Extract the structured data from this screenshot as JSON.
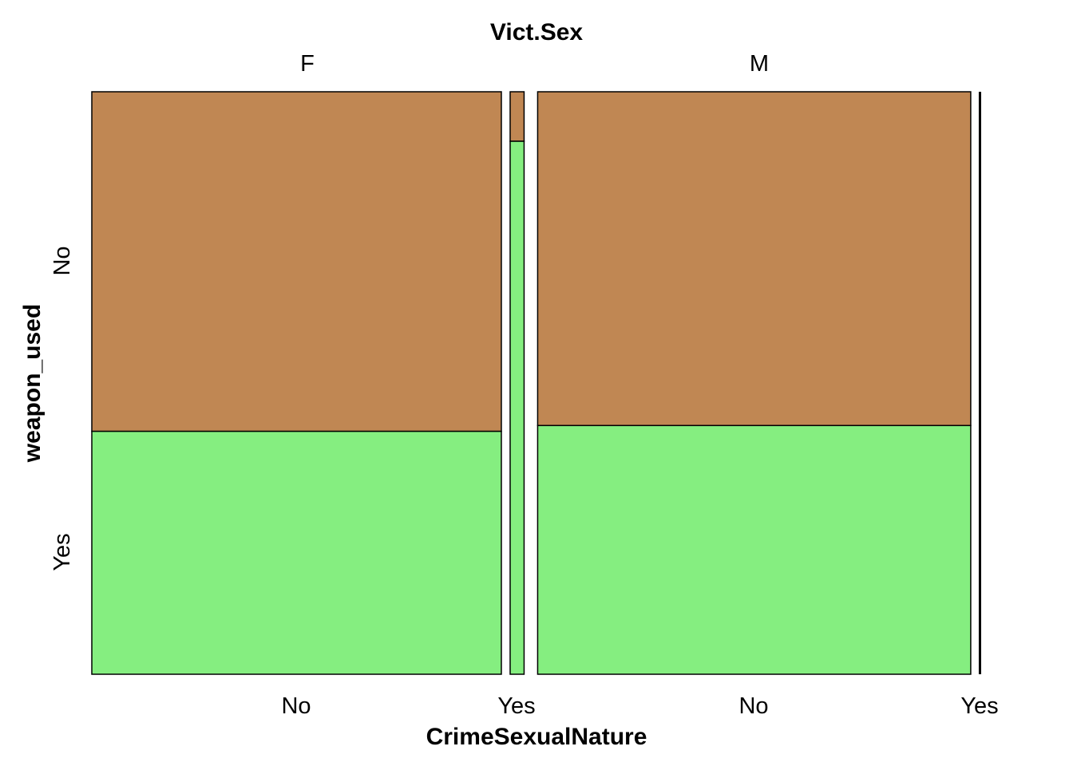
{
  "chart_data": {
    "type": "mosaic",
    "title": "Vict.Sex",
    "xlabel": "CrimeSexualNature",
    "ylabel": "weapon_used",
    "panels": [
      "F",
      "M"
    ],
    "x_categories": [
      "No",
      "Yes"
    ],
    "y_categories": [
      "No",
      "Yes"
    ],
    "cells": [
      {
        "panel": "F",
        "crime_sexual_nature": "No",
        "share_of_total": 0.47,
        "weapon_used_yes_share": 0.417
      },
      {
        "panel": "F",
        "crime_sexual_nature": "Yes",
        "share_of_total": 0.016,
        "weapon_used_yes_share": 0.915
      },
      {
        "panel": "M",
        "crime_sexual_nature": "No",
        "share_of_total": 0.497,
        "weapon_used_yes_share": 0.427
      },
      {
        "panel": "M",
        "crime_sexual_nature": "Yes",
        "share_of_total": 0.001,
        "weapon_used_yes_share": 0.5
      }
    ],
    "colors": {
      "No": "#c08753",
      "Yes": "#85ee80",
      "outline": "#000000"
    }
  }
}
